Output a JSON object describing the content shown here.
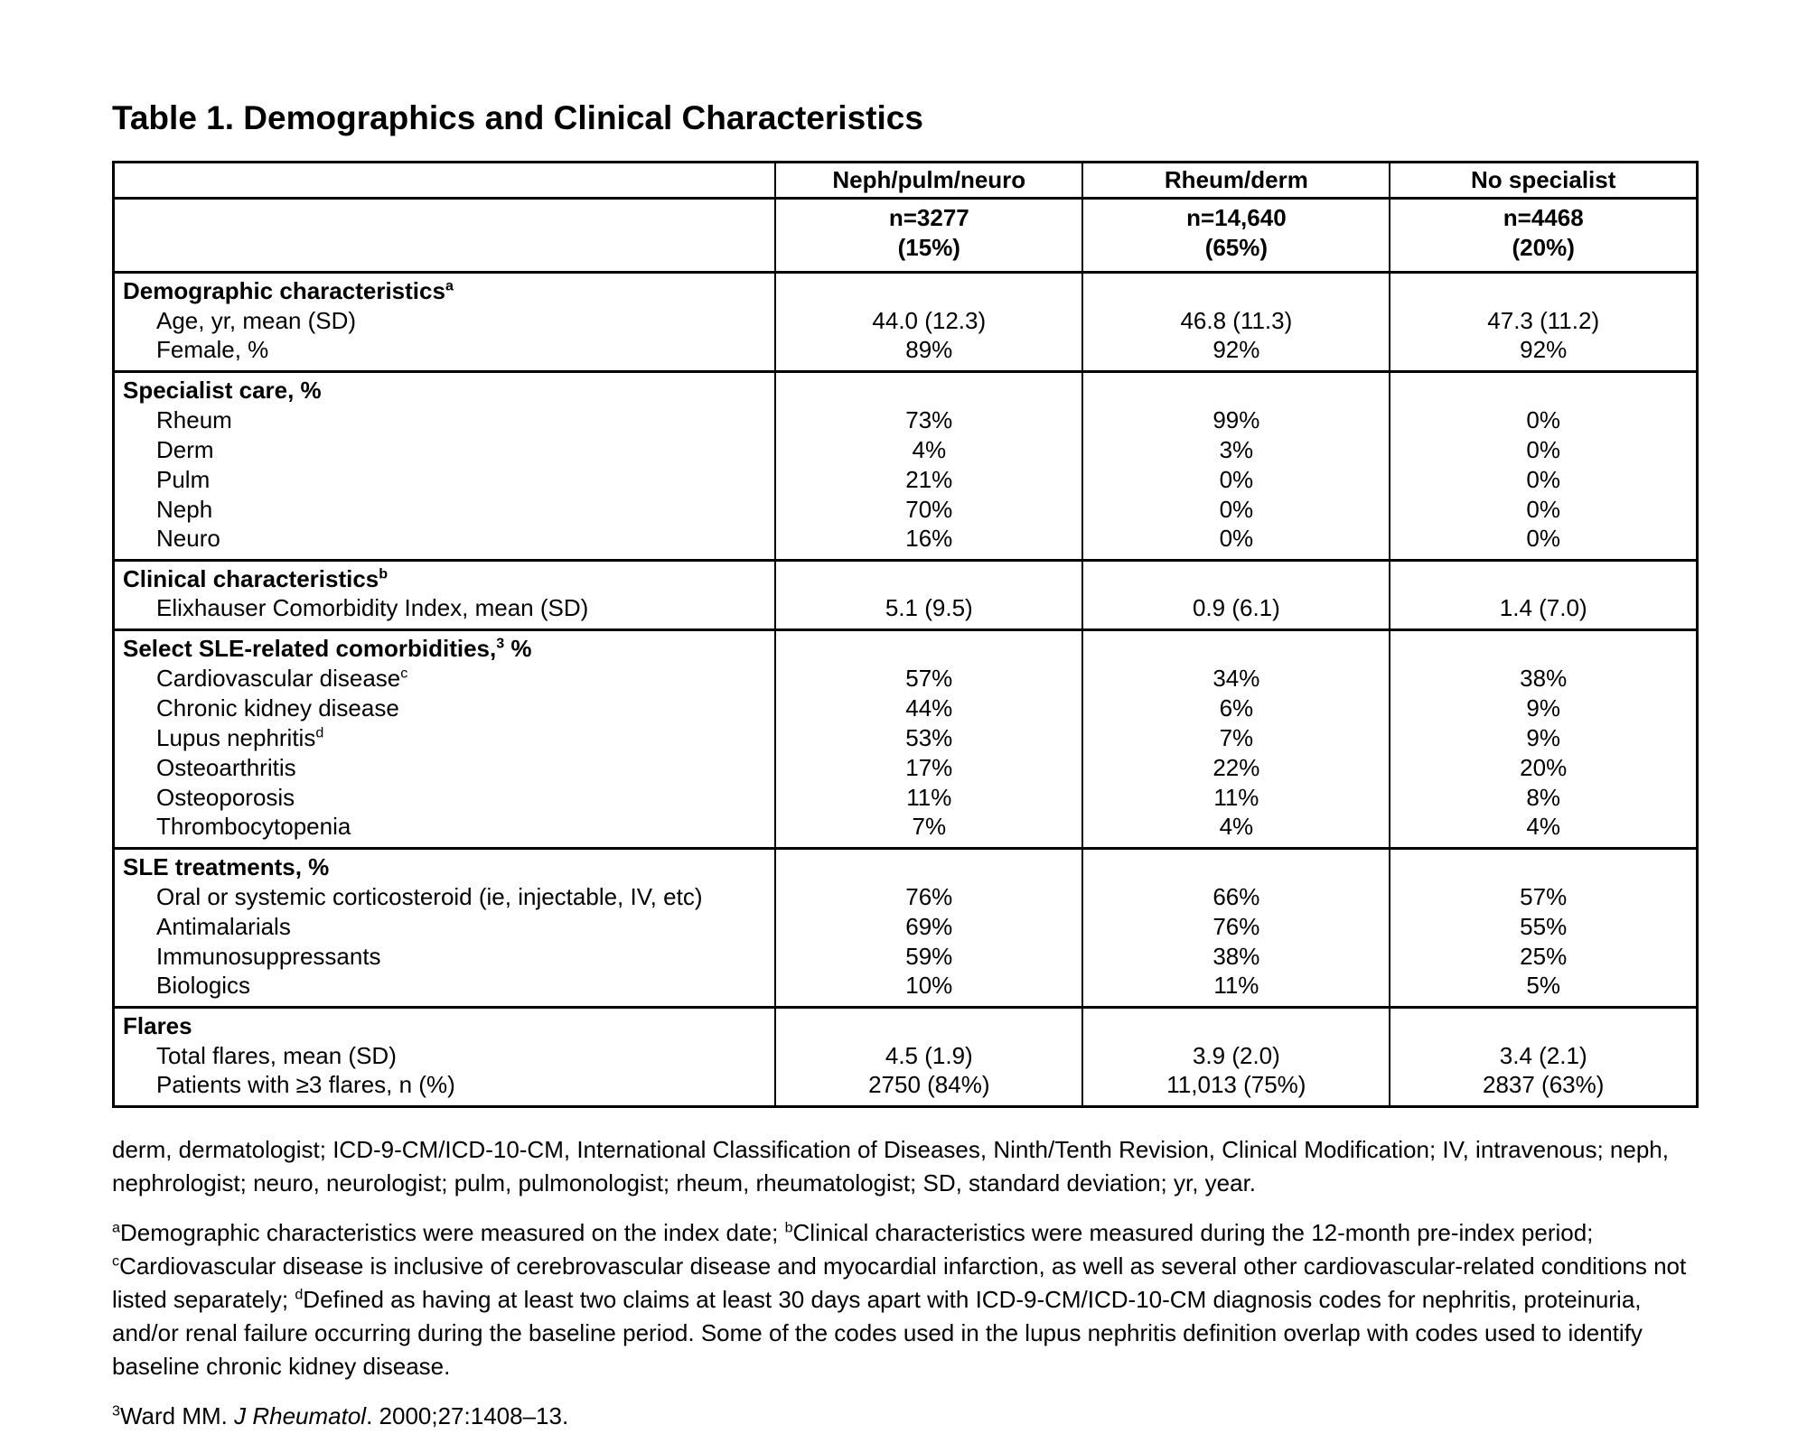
{
  "page": {
    "title": "Table 1. Demographics and Clinical Characteristics"
  },
  "table": {
    "column_headers": [
      "Neph/pulm/neuro",
      "Rheum/derm",
      "No specialist"
    ],
    "subheaders": [
      {
        "n": "n=3277",
        "pct": "(15%)"
      },
      {
        "n": "n=14,640",
        "pct": "(65%)"
      },
      {
        "n": "n=4468",
        "pct": "(20%)"
      }
    ],
    "sections": [
      {
        "title": "Demographic characteristics",
        "title_sup": "a",
        "rows": [
          {
            "label": "Age, yr, mean (SD)",
            "values": [
              "44.0 (12.3)",
              "46.8 (11.3)",
              "47.3 (11.2)"
            ]
          },
          {
            "label": "Female, %",
            "values": [
              "89%",
              "92%",
              "92%"
            ]
          }
        ]
      },
      {
        "title": "Specialist care, %",
        "rows": [
          {
            "label": "Rheum",
            "values": [
              "73%",
              "99%",
              "0%"
            ]
          },
          {
            "label": "Derm",
            "values": [
              "4%",
              "3%",
              "0%"
            ]
          },
          {
            "label": "Pulm",
            "values": [
              "21%",
              "0%",
              "0%"
            ]
          },
          {
            "label": "Neph",
            "values": [
              "70%",
              "0%",
              "0%"
            ]
          },
          {
            "label": "Neuro",
            "values": [
              "16%",
              "0%",
              "0%"
            ]
          }
        ]
      },
      {
        "title": "Clinical characteristics",
        "title_sup": "b",
        "rows": [
          {
            "label": "Elixhauser Comorbidity Index, mean (SD)",
            "values": [
              "5.1 (9.5)",
              "0.9 (6.1)",
              "1.4 (7.0)"
            ]
          }
        ]
      },
      {
        "title": "Select SLE-related comorbidities,",
        "title_sup": "3",
        "title_tail": " %",
        "rows": [
          {
            "label": "Cardiovascular disease",
            "label_sup": "c",
            "values": [
              "57%",
              "34%",
              "38%"
            ]
          },
          {
            "label": "Chronic kidney disease",
            "values": [
              "44%",
              "6%",
              "9%"
            ]
          },
          {
            "label": "Lupus nephritis",
            "label_sup": "d",
            "values": [
              "53%",
              "7%",
              "9%"
            ]
          },
          {
            "label": "Osteoarthritis",
            "values": [
              "17%",
              "22%",
              "20%"
            ]
          },
          {
            "label": "Osteoporosis",
            "values": [
              "11%",
              "11%",
              "8%"
            ]
          },
          {
            "label": "Thrombocytopenia",
            "values": [
              "7%",
              "4%",
              "4%"
            ]
          }
        ]
      },
      {
        "title": "SLE treatments, %",
        "rows": [
          {
            "label": "Oral or systemic corticosteroid (ie, injectable, IV, etc)",
            "values": [
              "76%",
              "66%",
              "57%"
            ]
          },
          {
            "label": "Antimalarials",
            "values": [
              "69%",
              "76%",
              "55%"
            ]
          },
          {
            "label": "Immunosuppressants",
            "values": [
              "59%",
              "38%",
              "25%"
            ]
          },
          {
            "label": "Biologics",
            "values": [
              "10%",
              "11%",
              "5%"
            ]
          }
        ]
      },
      {
        "title": "Flares",
        "rows": [
          {
            "label": "Total flares, mean (SD)",
            "values": [
              "4.5 (1.9)",
              "3.9 (2.0)",
              "3.4 (2.1)"
            ]
          },
          {
            "label": "Patients with ≥3 flares, n (%)",
            "values": [
              "2750 (84%)",
              "11,013 (75%)",
              "2837 (63%)"
            ]
          }
        ]
      }
    ]
  },
  "footnotes": {
    "abbreviations": "derm, dermatologist; ICD-9-CM/ICD-10-CM, International Classification of Diseases, Ninth/Tenth Revision, Clinical Modification; IV, intravenous; neph, nephrologist; neuro, neurologist; pulm, pulmonologist; rheum, rheumatologist; SD, standard deviation; yr, year.",
    "definitions": {
      "a_sup": "a",
      "a_text": "Demographic characteristics were measured on the index date; ",
      "b_sup": "b",
      "b_text": "Clinical characteristics were measured during the 12-month pre-index period; ",
      "c_sup": "c",
      "c_text": "Cardiovascular disease is inclusive of cerebrovascular disease and myocardial infarction, as well as several other cardiovascular-related conditions not listed separately; ",
      "d_sup": "d",
      "d_text": "Defined as having at least two claims at least 30 days apart with ICD-9-CM/ICD-10-CM diagnosis codes for nephritis, proteinuria, and/or renal failure occurring during the baseline period. Some of the codes used in the lupus nephritis definition overlap with codes used to identify baseline chronic kidney disease."
    },
    "reference": {
      "sup": "3",
      "author": "Ward MM. ",
      "journal": "J Rheumatol",
      "tail": ". 2000;27:1408–13."
    }
  }
}
